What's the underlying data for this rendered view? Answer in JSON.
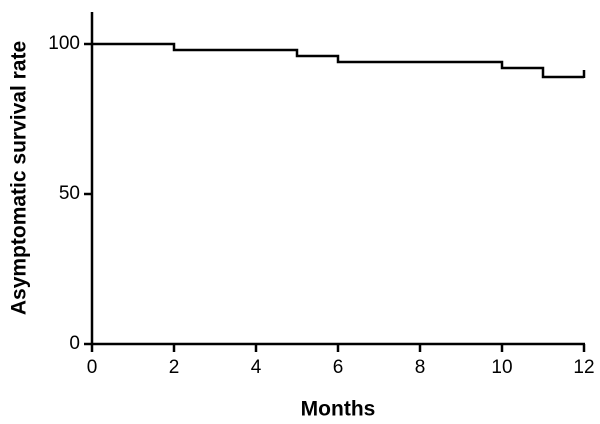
{
  "chart_data": {
    "type": "line",
    "step": "post",
    "x_label": "Months",
    "y_label": "Asymptomatic survival rate",
    "x": [
      0,
      2,
      5,
      6,
      10,
      11,
      12
    ],
    "series": [
      {
        "color": "#000000",
        "values": [
          100,
          98,
          96,
          94,
          92,
          89,
          89
        ]
      }
    ],
    "censored": {
      "x": [
        12
      ],
      "y": [
        89
      ]
    },
    "xlim": [
      0,
      12
    ],
    "xticks": [
      0,
      2,
      4,
      6,
      8,
      10,
      12
    ],
    "ylim": [
      0,
      110
    ],
    "yticks": [
      0,
      50,
      100
    ],
    "grid": false
  }
}
